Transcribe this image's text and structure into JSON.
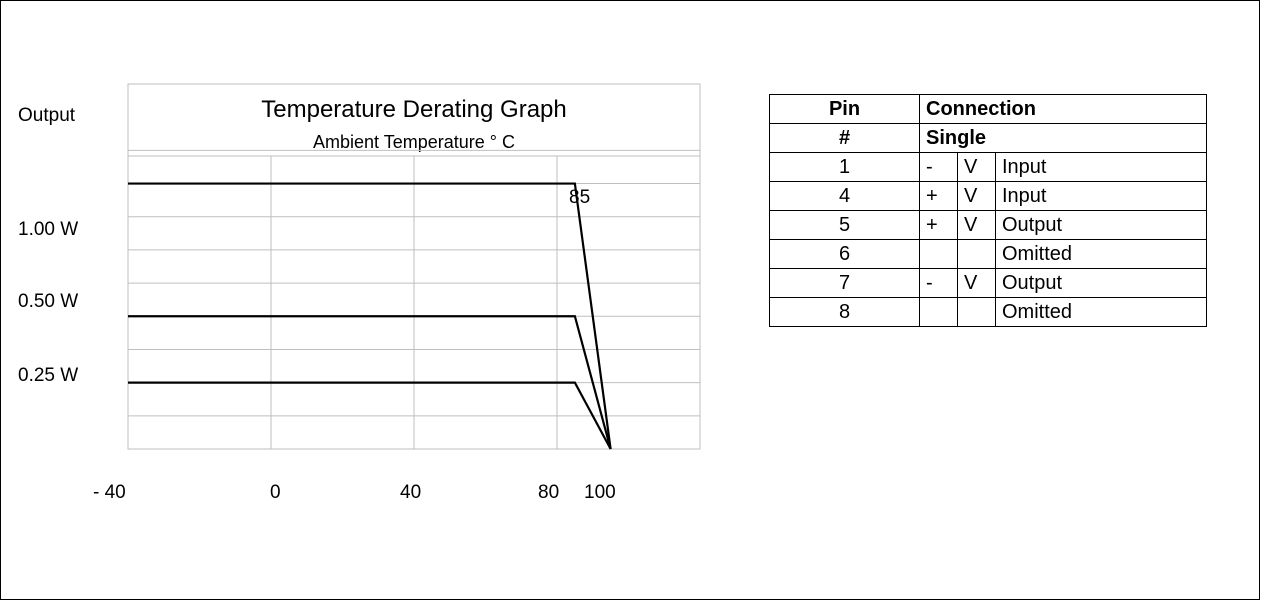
{
  "chart_data": {
    "type": "line",
    "title": "Temperature Derating Graph",
    "subtitle": "Ambient Temperature ° C",
    "ylabel": "Output",
    "xlabel": "",
    "x_tick_labels": [
      "- 40",
      "0",
      "40",
      "80",
      "100"
    ],
    "y_tick_labels": [
      "1.00 W",
      "0.50 W",
      "0.25 W"
    ],
    "annotation": "85",
    "xlim": [
      -40,
      120
    ],
    "ylim": [
      0,
      1.375
    ],
    "grid": true,
    "series": [
      {
        "x": [
          -40,
          85,
          95
        ],
        "y": [
          1.0,
          1.0,
          0
        ]
      },
      {
        "x": [
          -40,
          85,
          95
        ],
        "y": [
          0.5,
          0.5,
          0
        ]
      },
      {
        "x": [
          -40,
          85,
          95
        ],
        "y": [
          0.25,
          0.25,
          0
        ]
      }
    ]
  },
  "pin_table": {
    "header1": {
      "pin": "Pin",
      "connection": "Connection"
    },
    "header2": {
      "pin": "#",
      "connection": "Single"
    },
    "rows": [
      {
        "pin": "1",
        "sign": "-",
        "v": "V",
        "function": "Input"
      },
      {
        "pin": "4",
        "sign": "+",
        "v": "V",
        "function": "Input"
      },
      {
        "pin": "5",
        "sign": "+",
        "v": "V",
        "function": "Output"
      },
      {
        "pin": "6",
        "sign": "",
        "v": "",
        "function": "Omitted"
      },
      {
        "pin": "7",
        "sign": "-",
        "v": "V",
        "function": "Output"
      },
      {
        "pin": "8",
        "sign": "",
        "v": "",
        "function": "Omitted"
      }
    ]
  }
}
